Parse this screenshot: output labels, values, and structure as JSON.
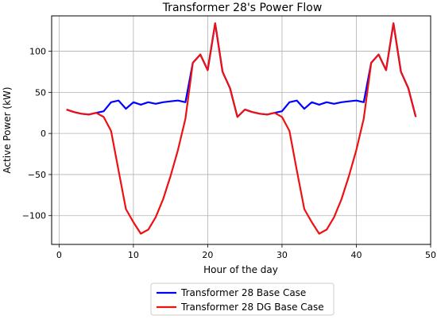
{
  "chart_data": {
    "type": "line",
    "title": "Transformer 28's Power Flow",
    "xlabel": "Hour of the day",
    "ylabel": "Active Power (kW)",
    "xlim": [
      -1,
      50
    ],
    "ylim": [
      -135,
      143
    ],
    "xticks": [
      0,
      10,
      20,
      30,
      40,
      50
    ],
    "yticks": [
      -100,
      -50,
      0,
      50,
      100
    ],
    "grid": true,
    "legend_position": "below",
    "x": [
      1,
      2,
      3,
      4,
      5,
      6,
      7,
      8,
      9,
      10,
      11,
      12,
      13,
      14,
      15,
      16,
      17,
      18,
      19,
      20,
      21,
      22,
      23,
      24,
      25,
      26,
      27,
      28,
      29,
      30,
      31,
      32,
      33,
      34,
      35,
      36,
      37,
      38,
      39,
      40,
      41,
      42,
      43,
      44,
      45,
      46,
      47,
      48
    ],
    "series": [
      {
        "name": "Transformer 28 Base Case",
        "color": "#0000ff",
        "values": [
          29,
          26,
          24,
          23,
          25,
          27,
          38,
          40,
          30,
          38,
          35,
          38,
          36,
          38,
          39,
          40,
          38,
          86,
          96,
          77,
          134,
          75,
          55,
          20,
          29,
          26,
          24,
          23,
          25,
          27,
          38,
          40,
          30,
          38,
          35,
          38,
          36,
          38,
          39,
          40,
          38,
          86,
          96,
          77,
          134,
          75,
          55,
          20
        ]
      },
      {
        "name": "Transformer 28 DG Base Case",
        "color": "#ee1111",
        "values": [
          29,
          26,
          24,
          23,
          25,
          20,
          3,
          -45,
          -92,
          -108,
          -122,
          -117,
          -102,
          -80,
          -52,
          -20,
          18,
          86,
          96,
          77,
          134,
          75,
          55,
          20,
          29,
          26,
          24,
          23,
          25,
          20,
          3,
          -45,
          -92,
          -108,
          -122,
          -117,
          -102,
          -80,
          -52,
          -20,
          18,
          86,
          96,
          77,
          134,
          75,
          55,
          20
        ]
      }
    ]
  }
}
